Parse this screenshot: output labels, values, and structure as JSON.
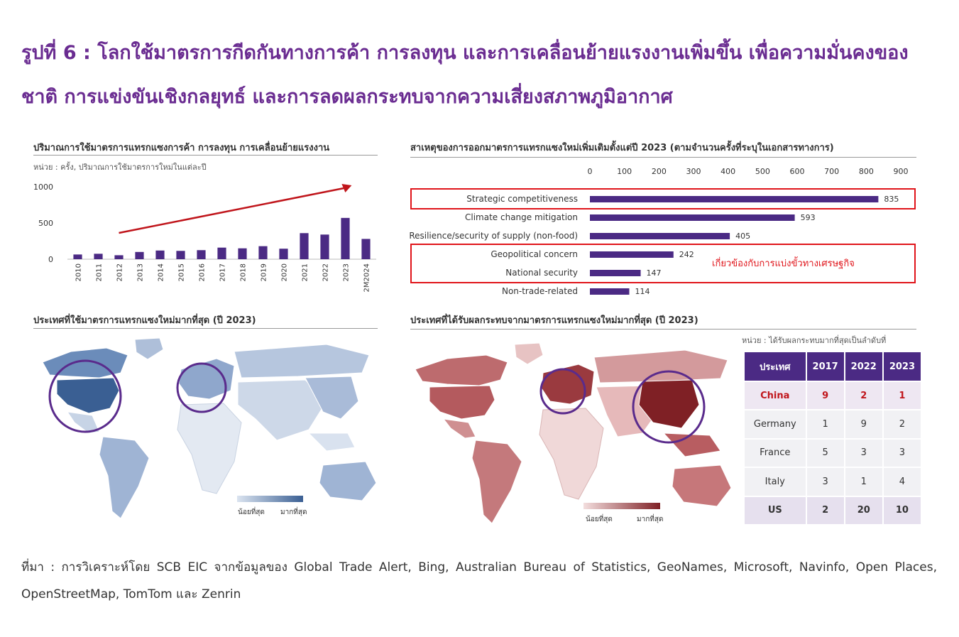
{
  "figure": {
    "title": "รูปที่ 6 : โลกใช้มาตรการกีดกันทางการค้า การลงทุน และการเคลื่อนย้ายแรงงานเพิ่มขึ้น เพื่อความมั่นคงของชาติ การแข่งขันเชิงกลยุทธ์ และการลดผลกระทบจากความเสี่ยงสภาพภูมิอากาศ",
    "source": "ที่มา : การวิเคราะห์โดย SCB EIC จากข้อมูลของ Global Trade Alert, Bing, Australian Bureau of Statistics, GeoNames, Microsoft, Navinfo, Open Places, OpenStreetMap, TomTom และ Zenrin"
  },
  "panels": {
    "volume": {
      "title": "ปริมาณการใช้มาตรการแทรกแซงการค้า การลงทุน การเคลื่อนย้ายแรงงาน",
      "unit": "หน่วย : ครั้ง, ปริมาณการใช้มาตรการใหม่ในแต่ละปี"
    },
    "reasons": {
      "title": "สาเหตุของการออกมาตรการแทรกแซงใหม่เพิ่มเติมตั้งแต่ปี 2023 (ตามจำนวนครั้งที่ระบุในเอกสารทางการ)",
      "annotation": "เกี่ยวข้องกับการแบ่งขั้วทางเศรษฐกิจ"
    },
    "map_users": {
      "title": "ประเทศที่ใช้มาตรการแทรกแซงใหม่มากที่สุด (ปี 2023)",
      "legend_low": "น้อยที่สุด",
      "legend_high": "มากที่สุด",
      "colors": {
        "low": "#dbe4f0",
        "high": "#3a5f93"
      }
    },
    "map_affected": {
      "title": "ประเทศที่ได้รับผลกระทบจากมาตรการแทรกแซงใหม่มากที่สุด (ปี 2023)",
      "unit": "หน่วย : ได้รับผลกระทบมากที่สุดเป็นลำดับที่",
      "legend_low": "น้อยที่สุด",
      "legend_high": "มากที่สุด",
      "colors": {
        "low": "#f3dede",
        "high": "#7f2025"
      }
    }
  },
  "chart_data": [
    {
      "type": "bar",
      "title": "ปริมาณการใช้มาตรการแทรกแซงการค้า การลงทุน การเคลื่อนย้ายแรงงาน",
      "categories": [
        "2010",
        "2011",
        "2012",
        "2013",
        "2014",
        "2015",
        "2016",
        "2017",
        "2018",
        "2019",
        "2020",
        "2021",
        "2022",
        "2023",
        "2M2024"
      ],
      "values": [
        65,
        75,
        55,
        100,
        120,
        115,
        125,
        160,
        150,
        180,
        145,
        360,
        340,
        570,
        280
      ],
      "ylim": [
        0,
        1000
      ],
      "yticks": [
        "0",
        "500",
        "1000"
      ],
      "color": "#4b2a84",
      "trend_arrow": true
    },
    {
      "type": "bar",
      "orientation": "horizontal",
      "title": "สาเหตุของการออกมาตรการแทรกแซงใหม่เพิ่มเติมตั้งแต่ปี 2023 (ตามจำนวนครั้งที่ระบุในเอกสารทางการ)",
      "categories": [
        "Strategic competitiveness",
        "Climate change mitigation",
        "Resilience/security of supply (non-food)",
        "Geopolitical concern",
        "National security",
        "Non-trade-related"
      ],
      "values": [
        835,
        593,
        405,
        242,
        147,
        114
      ],
      "xlim": [
        0,
        900
      ],
      "xticks": [
        "0",
        "100",
        "200",
        "300",
        "400",
        "500",
        "600",
        "700",
        "800",
        "900"
      ],
      "color": "#4b2a84",
      "highlight_groups": [
        [
          0
        ],
        [
          3,
          4
        ]
      ]
    },
    {
      "type": "table",
      "headers": [
        "ประเทศ",
        "2017",
        "2022",
        "2023"
      ],
      "rows": [
        [
          "China",
          "9",
          "2",
          "1"
        ],
        [
          "Germany",
          "1",
          "9",
          "2"
        ],
        [
          "France",
          "5",
          "3",
          "3"
        ],
        [
          "Italy",
          "3",
          "1",
          "4"
        ],
        [
          "US",
          "2",
          "20",
          "10"
        ]
      ]
    }
  ]
}
